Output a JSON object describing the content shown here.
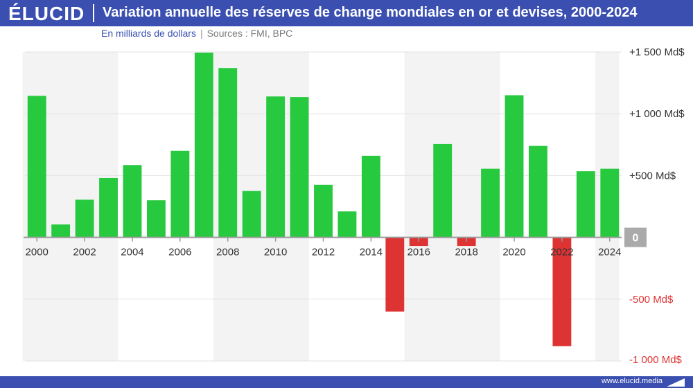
{
  "header": {
    "logo": "ÉLUCID",
    "title": "Variation annuelle des réserves de change mondiales en or et devises, 2000-2024"
  },
  "subtitle": {
    "unit": "En milliards de dollars",
    "separator": "|",
    "sources": "Sources : FMI, BPC"
  },
  "footer": {
    "site": "www.elucid.media"
  },
  "colors": {
    "positive": "#27c93f",
    "negative": "#dd3333",
    "brand": "#3a4fb0",
    "band": "#f3f3f3",
    "zero_badge": "#aaaaaa"
  },
  "chart_data": {
    "type": "bar",
    "categories": [
      "2000",
      "2001",
      "2002",
      "2003",
      "2004",
      "2005",
      "2006",
      "2007",
      "2008",
      "2009",
      "2010",
      "2011",
      "2012",
      "2013",
      "2014",
      "2015",
      "2016",
      "2017",
      "2018",
      "2019",
      "2020",
      "2021",
      "2022",
      "2023",
      "2024"
    ],
    "values": [
      1145,
      105,
      305,
      480,
      585,
      300,
      700,
      1495,
      1370,
      375,
      1140,
      1135,
      425,
      210,
      660,
      -600,
      -70,
      755,
      -70,
      555,
      1150,
      740,
      -880,
      535,
      555
    ],
    "x_tick_labels": [
      "2000",
      "2002",
      "2004",
      "2006",
      "2008",
      "2010",
      "2012",
      "2014",
      "2016",
      "2018",
      "2020",
      "2022",
      "2024"
    ],
    "y_ticks": [
      {
        "value": 1500,
        "label": "+1 500 Md$",
        "color": "#333333"
      },
      {
        "value": 1000,
        "label": "+1 000 Md$",
        "color": "#333333"
      },
      {
        "value": 500,
        "label": "+500 Md$",
        "color": "#333333"
      },
      {
        "value": 0,
        "label": "0",
        "color": "#ffffff",
        "badge": true
      },
      {
        "value": -500,
        "label": "-500 Md$",
        "color": "#dd3333"
      },
      {
        "value": -1000,
        "label": "-1 000 Md$",
        "color": "#dd3333"
      }
    ],
    "ylim": [
      -1000,
      1500
    ],
    "alternating_bands": true,
    "grid": true,
    "xlabel": "",
    "ylabel": ""
  }
}
